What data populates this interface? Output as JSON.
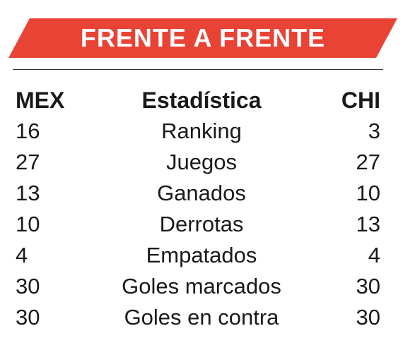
{
  "banner": {
    "title": "FRENTE A FRENTE",
    "color": "#e84335"
  },
  "table": {
    "headers": {
      "mex": "MEX",
      "stat": "Estadística",
      "chi": "CHI"
    },
    "rows": [
      {
        "mex": "16",
        "stat": "Ranking",
        "chi": "3"
      },
      {
        "mex": "27",
        "stat": "Juegos",
        "chi": "27"
      },
      {
        "mex": "13",
        "stat": "Ganados",
        "chi": "10"
      },
      {
        "mex": "10",
        "stat": "Derrotas",
        "chi": "13"
      },
      {
        "mex": "4",
        "stat": "Empatados",
        "chi": "4"
      },
      {
        "mex": "30",
        "stat": "Goles marcados",
        "chi": "30"
      },
      {
        "mex": "30",
        "stat": "Goles en contra",
        "chi": "30"
      }
    ]
  }
}
